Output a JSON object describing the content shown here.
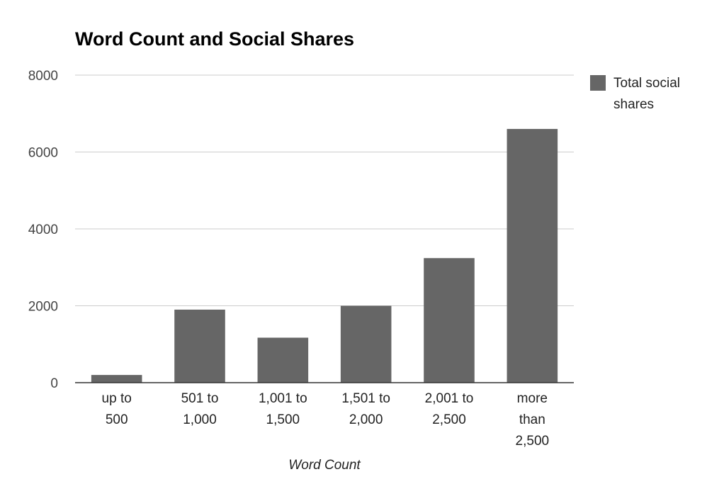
{
  "chart_data": {
    "type": "bar",
    "title": "Word Count and Social Shares",
    "xlabel": "Word Count",
    "ylabel": "",
    "categories": [
      [
        "up to",
        "500"
      ],
      [
        "501 to",
        "1,000"
      ],
      [
        "1,001 to",
        "1,500"
      ],
      [
        "1,501 to",
        "2,000"
      ],
      [
        "2,001 to",
        "2,500"
      ],
      [
        "more",
        "than",
        "2,500"
      ]
    ],
    "series": [
      {
        "name": "Total social shares",
        "legend_lines": [
          "Total social",
          "shares"
        ],
        "color": "#666666",
        "values": [
          200,
          1900,
          1170,
          2000,
          3240,
          6600
        ]
      }
    ],
    "ylim": [
      0,
      8000
    ],
    "yticks": [
      0,
      2000,
      4000,
      6000,
      8000
    ],
    "grid": true,
    "legend_position": "top-right"
  }
}
